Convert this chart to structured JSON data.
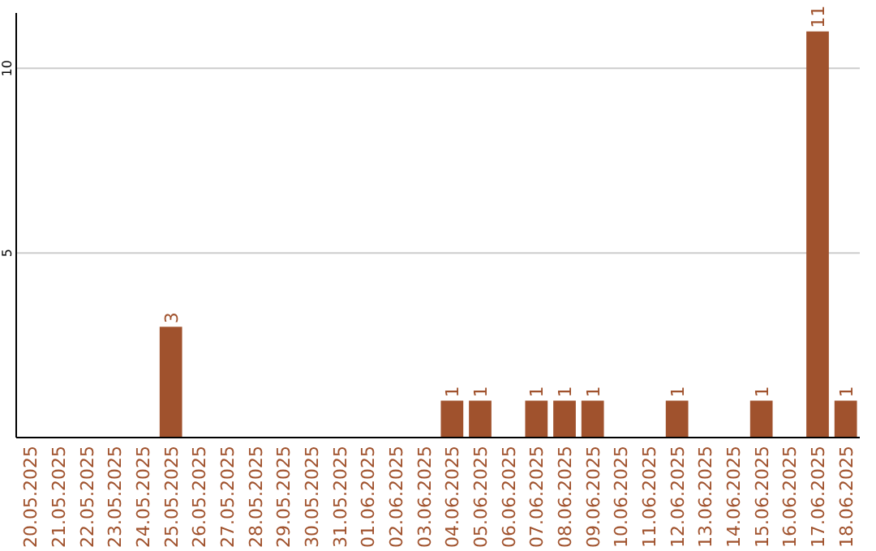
{
  "chart_data": {
    "type": "bar",
    "categories": [
      "20.05.2025",
      "21.05.2025",
      "22.05.2025",
      "23.05.2025",
      "24.05.2025",
      "25.05.2025",
      "26.05.2025",
      "27.05.2025",
      "28.05.2025",
      "29.05.2025",
      "30.05.2025",
      "31.05.2025",
      "01.06.2025",
      "02.06.2025",
      "03.06.2025",
      "04.06.2025",
      "05.06.2025",
      "06.06.2025",
      "07.06.2025",
      "08.06.2025",
      "09.06.2025",
      "10.06.2025",
      "11.06.2025",
      "12.06.2025",
      "13.06.2025",
      "14.06.2025",
      "15.06.2025",
      "16.06.2025",
      "17.06.2025",
      "18.06.2025"
    ],
    "values": [
      0,
      0,
      0,
      0,
      0,
      3,
      0,
      0,
      0,
      0,
      0,
      0,
      0,
      0,
      0,
      1,
      1,
      0,
      1,
      1,
      1,
      0,
      0,
      1,
      0,
      0,
      1,
      0,
      11,
      1
    ],
    "value_labels": [
      null,
      null,
      null,
      null,
      null,
      "3",
      null,
      null,
      null,
      null,
      null,
      null,
      null,
      null,
      null,
      "1",
      "1",
      null,
      "1",
      "1",
      "1",
      null,
      null,
      "1",
      null,
      null,
      "1",
      null,
      "11",
      "1"
    ],
    "color": "#a0522d",
    "ylim": [
      0,
      11.5
    ],
    "yticks": [
      5,
      10
    ],
    "grid": "y"
  }
}
